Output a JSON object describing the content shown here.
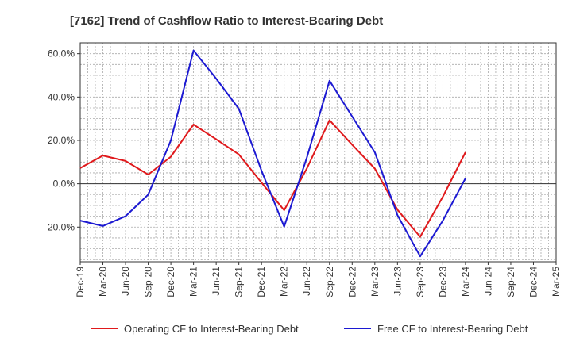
{
  "chart_data": {
    "type": "line",
    "title": "[7162]  Trend of Cashflow Ratio to Interest-Bearing Debt",
    "xlabel": "",
    "ylabel": "",
    "categories": [
      "Dec-19",
      "Mar-20",
      "Jun-20",
      "Sep-20",
      "Dec-20",
      "Mar-21",
      "Jun-21",
      "Sep-21",
      "Dec-21",
      "Mar-22",
      "Jun-22",
      "Sep-22",
      "Dec-22",
      "Mar-23",
      "Jun-23",
      "Sep-23",
      "Dec-23",
      "Mar-24",
      "Jun-24",
      "Sep-24",
      "Dec-24",
      "Mar-25"
    ],
    "ylim": [
      -36,
      65
    ],
    "yticks": [
      -20,
      0,
      20,
      40,
      60
    ],
    "ytick_labels": [
      "-20.0%",
      "0.0%",
      "20.0%",
      "40.0%",
      "60.0%"
    ],
    "grid": true,
    "legend_position": "bottom",
    "series": [
      {
        "name": "Operating CF to Interest-Bearing Debt",
        "color": "#e0191c",
        "values": [
          7.2,
          13.0,
          10.5,
          4.2,
          12.5,
          27.3,
          20.5,
          13.5,
          0.5,
          -12.2,
          7.0,
          29.3,
          18.0,
          7.0,
          -12.0,
          -24.5,
          -6.0,
          14.5,
          null,
          null,
          null,
          null
        ]
      },
      {
        "name": "Free CF to Interest-Bearing Debt",
        "color": "#1c19d2",
        "values": [
          -17.0,
          -19.5,
          -15.0,
          -5.0,
          20.0,
          61.5,
          48.5,
          34.5,
          6.0,
          -19.8,
          12.0,
          47.5,
          31.0,
          14.5,
          -14.5,
          -33.5,
          -17.0,
          2.5,
          null,
          null,
          null,
          null
        ]
      }
    ]
  }
}
